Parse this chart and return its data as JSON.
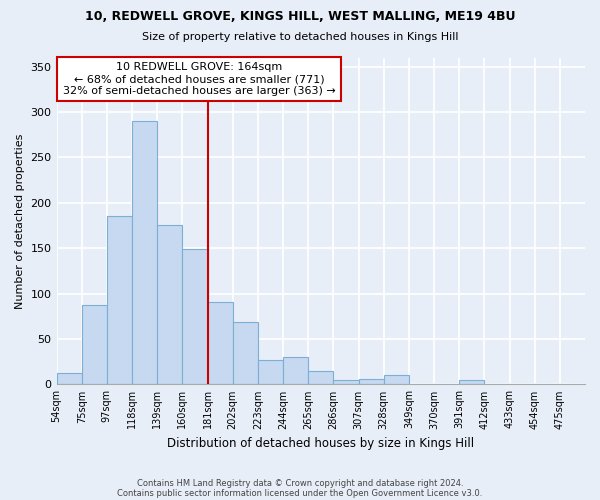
{
  "title1": "10, REDWELL GROVE, KINGS HILL, WEST MALLING, ME19 4BU",
  "title2": "Size of property relative to detached houses in Kings Hill",
  "xlabel": "Distribution of detached houses by size in Kings Hill",
  "ylabel": "Number of detached properties",
  "bar_labels": [
    "54sqm",
    "75sqm",
    "97sqm",
    "118sqm",
    "139sqm",
    "160sqm",
    "181sqm",
    "202sqm",
    "223sqm",
    "244sqm",
    "265sqm",
    "286sqm",
    "307sqm",
    "328sqm",
    "349sqm",
    "370sqm",
    "391sqm",
    "412sqm",
    "433sqm",
    "454sqm",
    "475sqm"
  ],
  "bar_values": [
    13,
    87,
    185,
    290,
    176,
    149,
    91,
    69,
    27,
    30,
    15,
    5,
    6,
    10,
    0,
    0,
    5,
    0,
    0,
    0,
    0
  ],
  "bar_color": "#c6d9f0",
  "bar_edge_color": "#7bafd4",
  "vline_x": 6,
  "vline_color": "#cc0000",
  "annotation_title": "10 REDWELL GROVE: 164sqm",
  "annotation_line1": "← 68% of detached houses are smaller (771)",
  "annotation_line2": "32% of semi-detached houses are larger (363) →",
  "annotation_box_color": "#ffffff",
  "annotation_box_edge": "#cc0000",
  "footer1": "Contains HM Land Registry data © Crown copyright and database right 2024.",
  "footer2": "Contains public sector information licensed under the Open Government Licence v3.0.",
  "ylim": [
    0,
    360
  ],
  "yticks": [
    0,
    50,
    100,
    150,
    200,
    250,
    300,
    350
  ],
  "background_color": "#e8eef8"
}
